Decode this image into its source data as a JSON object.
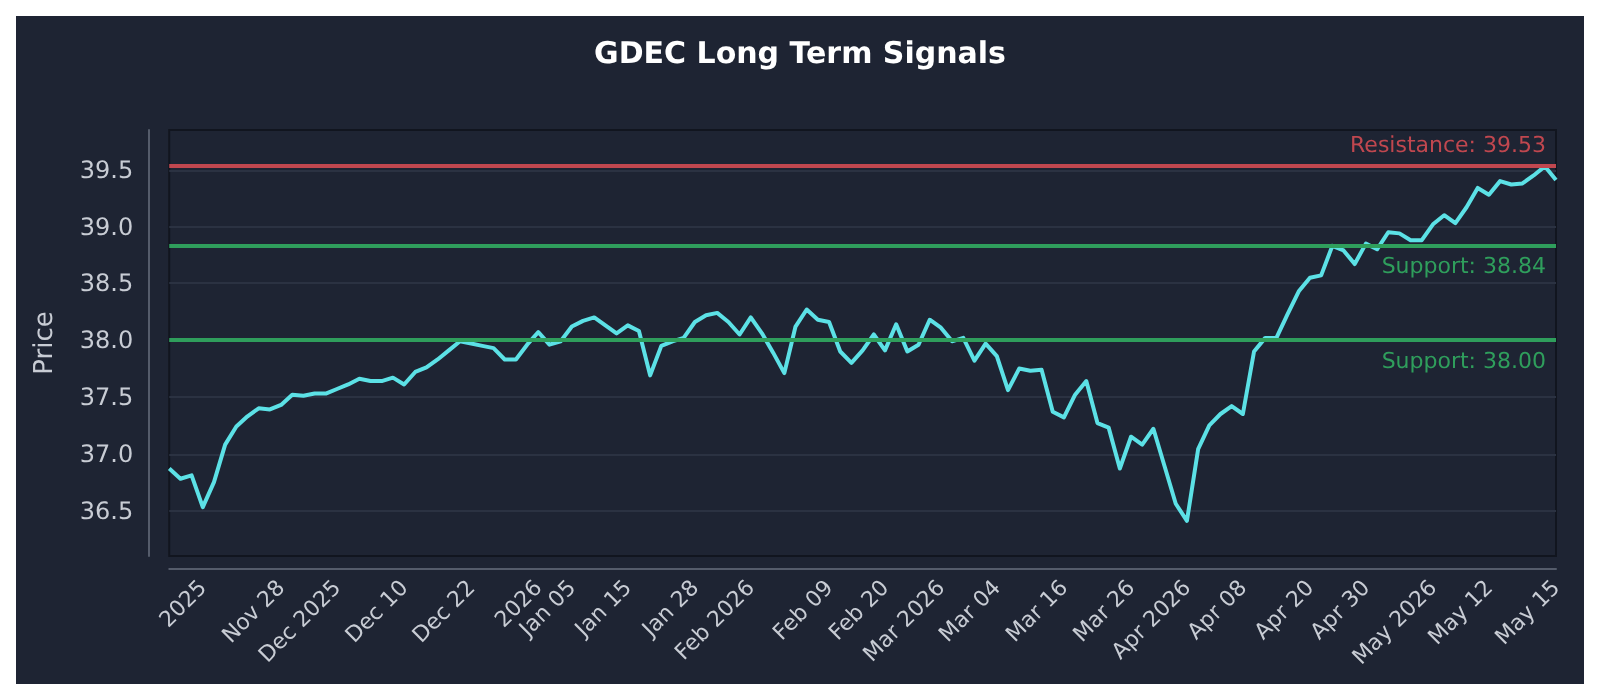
{
  "chart_data": {
    "type": "line",
    "title": "GDEC Long Term Signals",
    "ylabel": "Price",
    "categories": [
      null,
      null,
      null,
      "2025",
      null,
      null,
      null,
      null,
      null,
      null,
      "Nov 28",
      null,
      null,
      null,
      null,
      "Dec 2025",
      null,
      null,
      null,
      null,
      null,
      "Dec 10",
      null,
      null,
      null,
      null,
      null,
      "Dec 22",
      null,
      null,
      null,
      null,
      null,
      "2026",
      null,
      null,
      "Jan 05",
      null,
      null,
      null,
      null,
      "Jan 15",
      null,
      null,
      null,
      null,
      null,
      "Jan 28",
      null,
      null,
      null,
      null,
      "Feb 2026",
      null,
      null,
      null,
      null,
      null,
      null,
      "Feb 09",
      null,
      null,
      null,
      null,
      "Feb 20",
      null,
      null,
      null,
      null,
      "Mar 2026",
      null,
      null,
      null,
      null,
      "Mar 04",
      null,
      null,
      null,
      null,
      null,
      "Mar 16",
      null,
      null,
      null,
      null,
      null,
      "Mar 26",
      null,
      null,
      null,
      null,
      "Apr 2026",
      null,
      null,
      null,
      null,
      "Apr 08",
      null,
      null,
      null,
      null,
      null,
      "Apr 20",
      null,
      null,
      null,
      null,
      "Apr 30",
      null,
      null,
      null,
      null,
      null,
      "May 2026",
      null,
      null,
      null,
      null,
      "May 12",
      null,
      null,
      null,
      null,
      null,
      "May 15"
    ],
    "series": [
      {
        "color": "#5ce1e6",
        "values": [
          36.87,
          36.78,
          36.81,
          36.53,
          36.75,
          37.08,
          37.24,
          37.33,
          37.4,
          37.39,
          37.43,
          37.52,
          37.51,
          37.53,
          37.53,
          37.57,
          37.61,
          37.66,
          37.64,
          37.64,
          37.67,
          37.61,
          37.72,
          37.76,
          37.83,
          37.91,
          37.99,
          37.97,
          37.95,
          37.93,
          37.83,
          37.83,
          37.96,
          38.07,
          37.96,
          37.99,
          38.12,
          38.17,
          38.2,
          38.13,
          38.06,
          38.13,
          38.08,
          37.69,
          37.95,
          37.99,
          38.02,
          38.16,
          38.22,
          38.24,
          38.16,
          38.05,
          38.2,
          38.06,
          37.89,
          37.71,
          38.12,
          38.27,
          38.18,
          38.16,
          37.9,
          37.8,
          37.91,
          38.05,
          37.91,
          38.14,
          37.9,
          37.96,
          38.18,
          38.11,
          37.99,
          38.02,
          37.82,
          37.97,
          37.86,
          37.56,
          37.75,
          37.73,
          37.74,
          37.37,
          37.32,
          37.52,
          37.64,
          37.27,
          37.23,
          36.87,
          37.15,
          37.08,
          37.22,
          36.89,
          36.56,
          36.41,
          37.04,
          37.25,
          37.35,
          37.42,
          37.35,
          37.9,
          38.02,
          38.02,
          38.23,
          38.43,
          38.55,
          38.57,
          38.83,
          38.79,
          38.67,
          38.85,
          38.8,
          38.95,
          38.94,
          38.88,
          38.88,
          39.02,
          39.1,
          39.03,
          39.17,
          39.34,
          39.28,
          39.4,
          39.37,
          39.38,
          39.45,
          39.53,
          39.41
        ]
      }
    ],
    "ylim": [
      36.1,
      39.85
    ],
    "yticks": [
      36.5,
      {
        "value": 37,
        "label": "37.0"
      },
      37.5,
      {
        "value": 38,
        "label": "38.0"
      },
      38.5,
      {
        "value": 39,
        "label": "39.0"
      },
      39.5
    ],
    "ref_lines": [
      {
        "axis": "y",
        "value": 39.53,
        "label": "Resistance: 39.53",
        "color": "#c0474f"
      },
      {
        "axis": "y",
        "value": 38.84,
        "label": "Support: 38.84",
        "color": "#2f9e5c"
      },
      {
        "axis": "y",
        "value": 38.0,
        "label": "Support: 38.00",
        "color": "#2f9e5c"
      }
    ],
    "grid": "y",
    "marker": "none",
    "line_style": "solid"
  }
}
